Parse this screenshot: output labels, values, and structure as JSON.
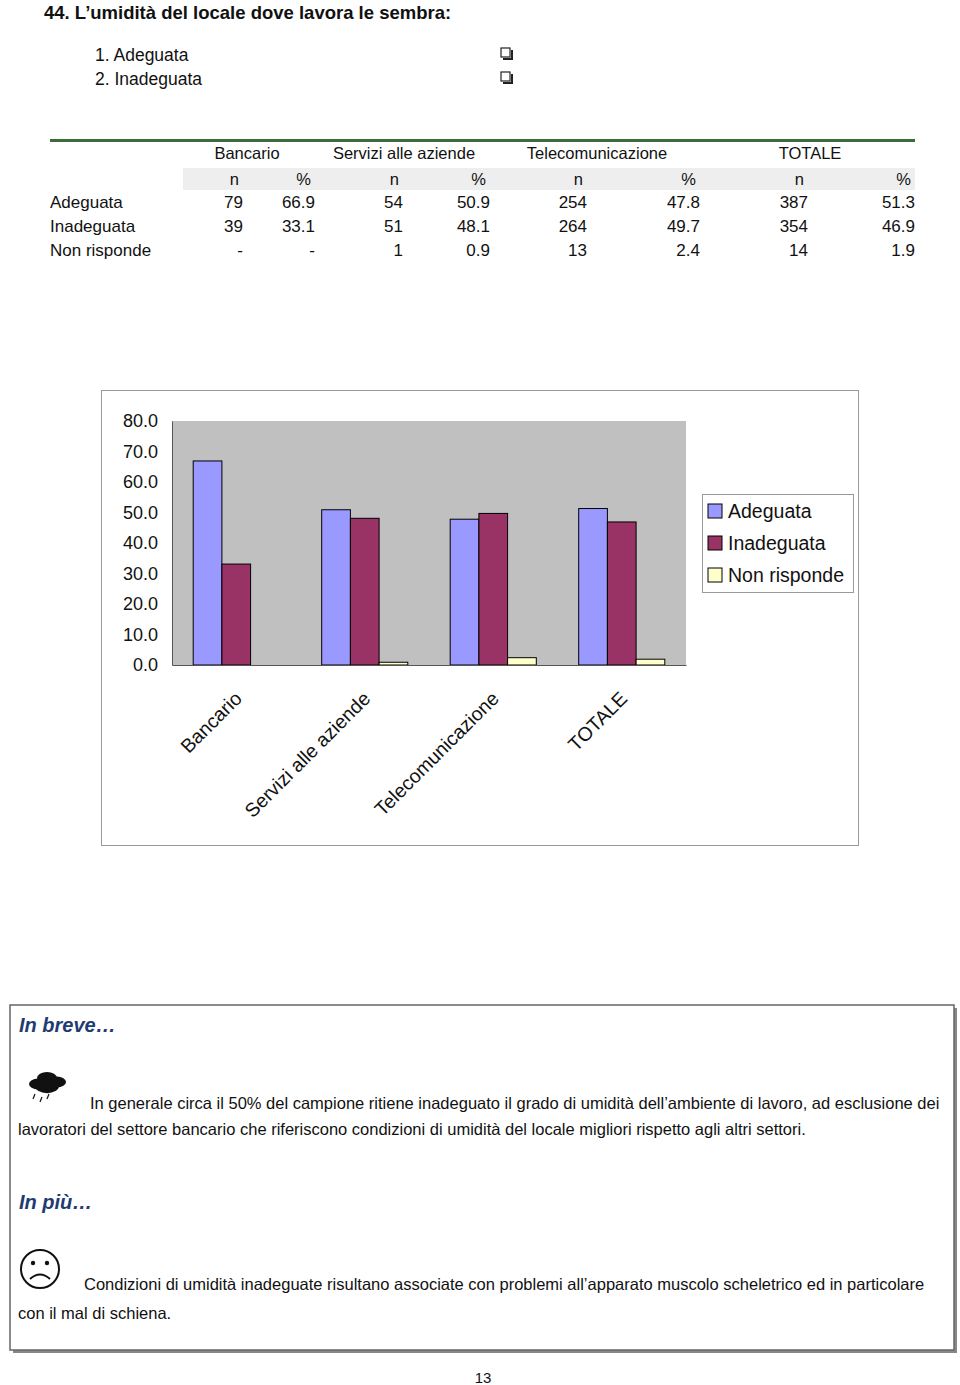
{
  "question": {
    "title": "44. L’umidità del locale dove lavora le sembra:",
    "options": [
      "1. Adeguata",
      "2. Inadeguata"
    ]
  },
  "table": {
    "groups": [
      "Bancario",
      "Servizi alle aziende",
      "Telecomunicazione",
      "TOTALE"
    ],
    "subheaders": [
      "n",
      "%",
      "n",
      "%",
      "n",
      "%",
      "n",
      "%"
    ],
    "rows": [
      [
        "Adeguata",
        "79",
        "66.9",
        "54",
        "50.9",
        "254",
        "47.8",
        "387",
        "51.3"
      ],
      [
        "Inadeguata",
        "39",
        "33.1",
        "51",
        "48.1",
        "264",
        "49.7",
        "354",
        "46.9"
      ],
      [
        "Non risponde",
        "-",
        "-",
        "1",
        "0.9",
        "13",
        "2.4",
        "14",
        "1.9"
      ]
    ]
  },
  "chart_data": {
    "type": "bar",
    "categories": [
      "Bancario",
      "Servizi alle aziende",
      "Telecomunicazione",
      "TOTALE"
    ],
    "series": [
      {
        "name": "Adeguata",
        "color": "#9999ff",
        "values": [
          66.9,
          50.9,
          47.8,
          51.3
        ]
      },
      {
        "name": "Inadeguata",
        "color": "#993366",
        "values": [
          33.1,
          48.1,
          49.7,
          46.9
        ]
      },
      {
        "name": "Non risponde",
        "color": "#ffffcc",
        "values": [
          null,
          0.9,
          2.4,
          1.9
        ]
      }
    ],
    "ylim": [
      0,
      80
    ],
    "yticks": [
      {
        "value": 0,
        "label": "0.0"
      },
      {
        "value": 10,
        "label": "10.0"
      },
      {
        "value": 20,
        "label": "20.0"
      },
      {
        "value": 30,
        "label": "30.0"
      },
      {
        "value": 40,
        "label": "40.0"
      },
      {
        "value": 50,
        "label": "50.0"
      },
      {
        "value": 60,
        "label": "60.0"
      },
      {
        "value": 70,
        "label": "70.0"
      },
      {
        "value": 80,
        "label": "80.0"
      }
    ],
    "grid": false,
    "legend": "right"
  },
  "in_breve": {
    "title": "In breve…",
    "text": "In generale circa il 50% del campione ritiene inadeguato il grado di umidità dell’ambiente di lavoro, ad esclusione dei lavoratori del settore bancario che riferiscono condizioni di umidità del locale migliori rispetto agli altri settori."
  },
  "in_piu": {
    "title": "In più…",
    "text": "Condizioni di umidità inadeguate risultano associate con problemi all’apparato muscolo scheletrico ed in particolare con il mal di schiena."
  },
  "page_number": "13"
}
